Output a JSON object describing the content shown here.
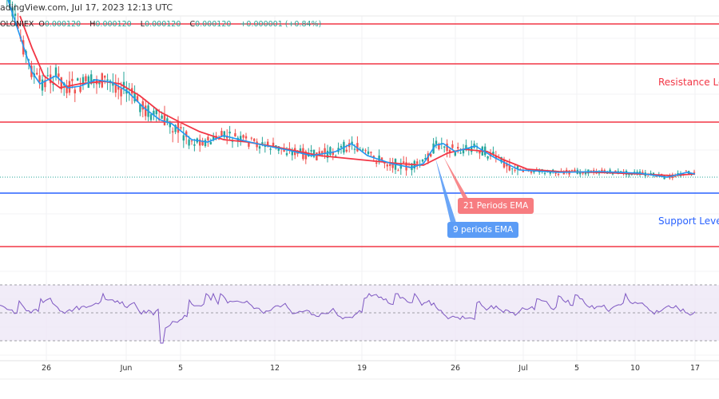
{
  "header": {
    "title": "adingView.com, Jul 17, 2023 12:13 UTC"
  },
  "ohlc": {
    "symbol": "OLONIEX",
    "o_label": "O",
    "o": "0.000120",
    "h_label": "H",
    "h": "0.000120",
    "l_label": "L",
    "l": "0.000120",
    "c_label": "C",
    "c": "0.000120",
    "change": "+0.000001 (+0.84%)"
  },
  "annotations": {
    "resistance": "Resistance Lev",
    "support": "Support Level",
    "ema21": "21 Periods EMA",
    "ema9": "9 periods EMA"
  },
  "colors": {
    "up": "#26a69a",
    "down": "#ef5350",
    "ema21": "#f23645",
    "ema9": "#2196f3",
    "rsi": "#7e57c2",
    "support": "#2962ff",
    "resistance": "#f23645"
  },
  "chart_data": {
    "type": "candlestick",
    "x_ticks": [
      "26",
      "Jun",
      "5",
      "12",
      "19",
      "26",
      "Jul",
      "5",
      "10",
      "17"
    ],
    "last_price": "0.000120",
    "indicators": [
      "EMA 9",
      "EMA 21",
      "RSI"
    ],
    "horizontal_levels": [
      {
        "type": "resistance",
        "count": 3
      },
      {
        "type": "support",
        "count": 2
      }
    ],
    "grid": true
  }
}
